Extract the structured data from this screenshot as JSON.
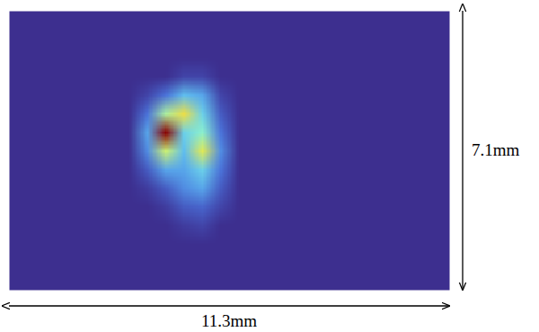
{
  "chart_data": {
    "type": "heatmap",
    "x_label": "11.3mm",
    "y_label": "7.1mm",
    "xlim": [
      0,
      11.3
    ],
    "ylim": [
      0,
      7.1
    ],
    "tick_labels": false,
    "cells": [
      [
        0,
        0,
        0,
        0,
        0,
        0,
        0,
        0,
        0,
        0,
        0,
        0,
        0,
        0,
        0,
        0,
        0,
        0,
        0,
        0,
        0,
        0,
        0,
        0
      ],
      [
        0,
        0,
        0,
        0,
        0,
        0,
        0,
        0,
        0,
        0,
        0,
        0,
        0,
        0,
        0,
        0,
        0,
        0,
        0,
        0,
        0,
        0,
        0,
        0
      ],
      [
        0,
        0,
        0,
        0,
        0,
        0,
        0,
        0,
        0,
        0,
        0,
        0,
        0,
        0,
        0,
        0,
        0,
        0,
        0,
        0,
        0,
        0,
        0,
        0
      ],
      [
        0,
        0,
        0,
        0,
        0,
        0,
        0,
        0,
        0,
        0.05,
        0.05,
        0,
        0,
        0,
        0,
        0,
        0,
        0,
        0,
        0,
        0,
        0,
        0,
        0
      ],
      [
        0,
        0,
        0,
        0,
        0,
        0,
        0,
        0.05,
        0.15,
        0.3,
        0.25,
        0.05,
        0,
        0,
        0,
        0,
        0,
        0,
        0,
        0,
        0,
        0,
        0,
        0
      ],
      [
        0,
        0,
        0,
        0,
        0,
        0,
        0,
        0.15,
        0.5,
        0.65,
        0.35,
        0.1,
        0,
        0,
        0,
        0,
        0,
        0,
        0,
        0,
        0,
        0,
        0,
        0
      ],
      [
        0,
        0,
        0,
        0,
        0,
        0,
        0,
        0.25,
        1,
        0.35,
        0.45,
        0.15,
        0,
        0,
        0,
        0,
        0,
        0,
        0,
        0,
        0,
        0,
        0,
        0
      ],
      [
        0,
        0,
        0,
        0,
        0,
        0,
        0,
        0.2,
        0.55,
        0.3,
        0.6,
        0.2,
        0,
        0,
        0,
        0,
        0,
        0,
        0,
        0,
        0,
        0,
        0,
        0
      ],
      [
        0,
        0,
        0,
        0,
        0,
        0,
        0,
        0.1,
        0.25,
        0.25,
        0.35,
        0.15,
        0,
        0,
        0,
        0,
        0,
        0,
        0,
        0,
        0,
        0,
        0,
        0
      ],
      [
        0,
        0,
        0,
        0,
        0,
        0,
        0,
        0.03,
        0.1,
        0.2,
        0.25,
        0.1,
        0,
        0,
        0,
        0,
        0,
        0,
        0,
        0,
        0,
        0,
        0,
        0
      ],
      [
        0,
        0,
        0,
        0,
        0,
        0,
        0,
        0,
        0.03,
        0.1,
        0.12,
        0.05,
        0,
        0,
        0,
        0,
        0,
        0,
        0,
        0,
        0,
        0,
        0,
        0
      ],
      [
        0,
        0,
        0,
        0,
        0,
        0,
        0,
        0,
        0,
        0.03,
        0.05,
        0,
        0,
        0,
        0,
        0,
        0,
        0,
        0,
        0,
        0,
        0,
        0,
        0
      ],
      [
        0,
        0,
        0,
        0,
        0,
        0,
        0,
        0,
        0,
        0,
        0,
        0,
        0,
        0,
        0,
        0,
        0,
        0,
        0,
        0,
        0,
        0,
        0,
        0
      ],
      [
        0,
        0,
        0,
        0,
        0,
        0,
        0,
        0,
        0,
        0,
        0,
        0,
        0,
        0,
        0,
        0,
        0,
        0,
        0,
        0,
        0,
        0,
        0,
        0
      ],
      [
        0,
        0,
        0,
        0,
        0,
        0,
        0,
        0,
        0,
        0,
        0,
        0,
        0,
        0,
        0,
        0,
        0,
        0,
        0,
        0,
        0,
        0,
        0,
        0
      ]
    ]
  }
}
